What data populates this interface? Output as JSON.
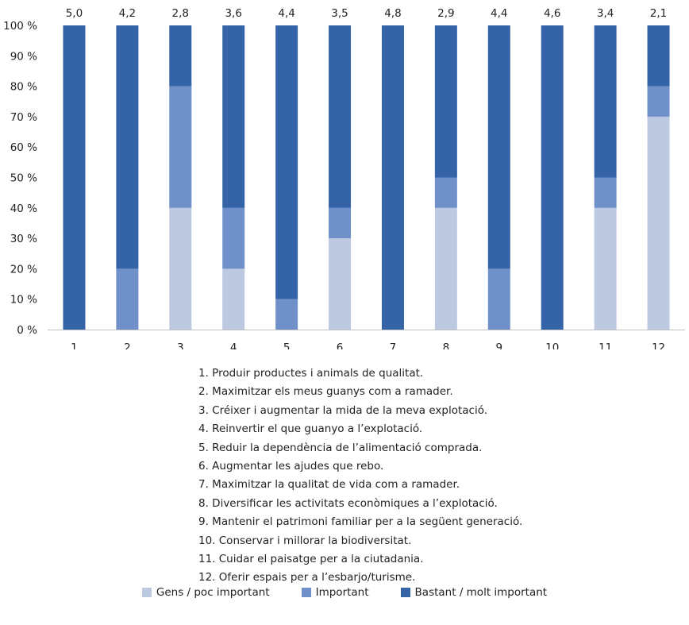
{
  "chart_data": {
    "type": "bar",
    "stacked": true,
    "categories": [
      "1",
      "2",
      "3",
      "4",
      "5",
      "6",
      "7",
      "8",
      "9",
      "10",
      "11",
      "12"
    ],
    "ylim": [
      0,
      100
    ],
    "yticks": [
      "0 %",
      "10 %",
      "20 %",
      "30 %",
      "40 %",
      "50 %",
      "60 %",
      "70 %",
      "80 %",
      "90 %",
      "100 %"
    ],
    "series": [
      {
        "name": "Gens / poc important",
        "color": "#bcc9e1",
        "values": [
          0,
          0,
          40,
          20,
          0,
          30,
          0,
          40,
          0,
          0,
          40,
          70
        ]
      },
      {
        "name": "Important",
        "color": "#7090c9",
        "values": [
          0,
          20,
          40,
          20,
          10,
          10,
          0,
          10,
          20,
          0,
          10,
          10
        ]
      },
      {
        "name": "Bastant / molt important",
        "color": "#3563a8",
        "values": [
          100,
          80,
          20,
          60,
          90,
          60,
          100,
          50,
          80,
          100,
          50,
          20
        ]
      }
    ],
    "top_labels": [
      "5,0",
      "4,2",
      "2,8",
      "3,6",
      "4,4",
      "3,5",
      "4,8",
      "2,9",
      "4,4",
      "4,6",
      "3,4",
      "2,1"
    ],
    "grid": false,
    "legend_position": "bottom"
  },
  "notes": [
    "1. Produir productes i animals de qualitat.",
    "2. Maximitzar els meus guanys com a ramader.",
    "3. Créixer i augmentar la mida de la meva explotació.",
    "4. Reinvertir el que guanyo a l’explotació.",
    "5. Reduir la dependència de l’alimentació comprada.",
    "6. Augmentar les ajudes que rebo.",
    "7. Maximitzar la qualitat de vida com a ramader.",
    "8. Diversificar les activitats econòmiques a l’explotació.",
    "9. Mantenir el patrimoni familiar per a la següent generació.",
    "10. Conservar i millorar la biodiversitat.",
    "11. Cuidar el paisatge per a la ciutadania.",
    "12. Oferir espais per a l’esbarjo/turisme."
  ]
}
